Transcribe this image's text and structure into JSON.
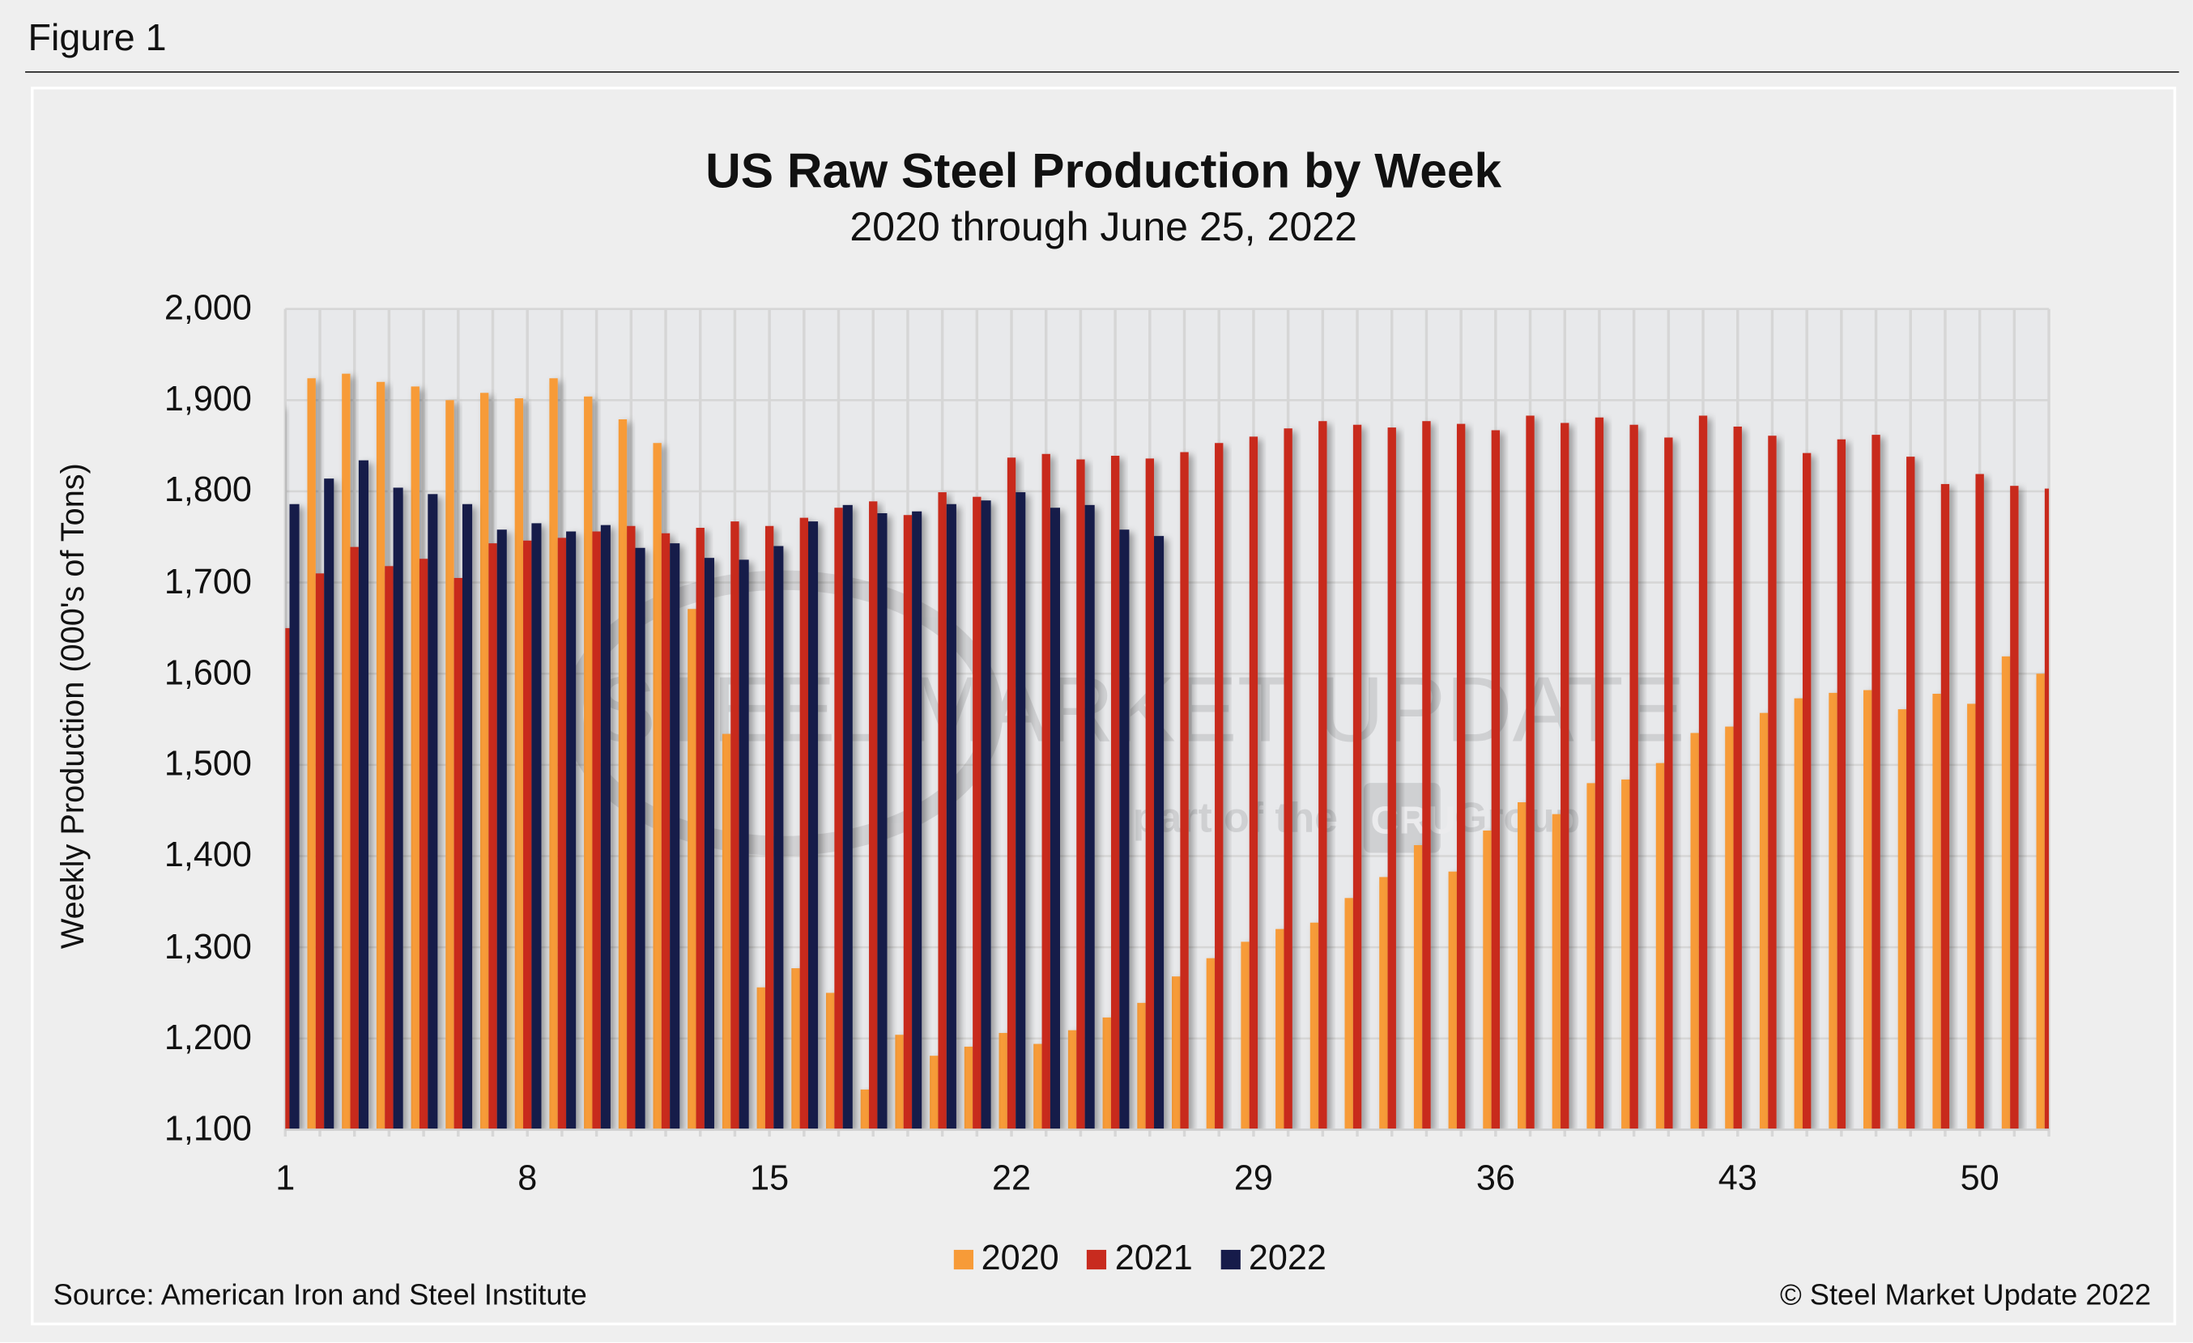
{
  "figure_label": "Figure 1",
  "source": "Source: American Iron and Steel Institute",
  "copyright": "© Steel Market Update 2022",
  "watermark": {
    "line1": "STEEL MARKET UPDATE",
    "line2": "part of the",
    "logo": "CRU",
    "line3": "Group"
  },
  "chart_data": {
    "type": "bar",
    "title": "US Raw Steel Production by Week",
    "subtitle": "2020 through June 25, 2022",
    "xlabel": "",
    "ylabel": "Weekly Production (000's of Tons)",
    "ylim": [
      1100,
      2000
    ],
    "y_ticks": [
      "1,100",
      "1,200",
      "1,300",
      "1,400",
      "1,500",
      "1,600",
      "1,700",
      "1,800",
      "1,900",
      "2,000"
    ],
    "x_ticks": [
      "1",
      "8",
      "15",
      "22",
      "29",
      "36",
      "43",
      "50"
    ],
    "grid": true,
    "legend": "bottom",
    "categories": [
      1,
      2,
      3,
      4,
      5,
      6,
      7,
      8,
      9,
      10,
      11,
      12,
      13,
      14,
      15,
      16,
      17,
      18,
      19,
      20,
      21,
      22,
      23,
      24,
      25,
      26,
      27,
      28,
      29,
      30,
      31,
      32,
      33,
      34,
      35,
      36,
      37,
      38,
      39,
      40,
      41,
      42,
      43,
      44,
      45,
      46,
      47,
      48,
      49,
      50,
      51,
      52
    ],
    "series": [
      {
        "name": "2020",
        "color": "#f79b38",
        "values": [
          1894,
          1924,
          1929,
          1920,
          1915,
          1900,
          1908,
          1902,
          1924,
          1904,
          1879,
          1853,
          1671,
          1534,
          1256,
          1277,
          1250,
          1144,
          1204,
          1181,
          1191,
          1206,
          1194,
          1209,
          1223,
          1239,
          1268,
          1288,
          1306,
          1320,
          1327,
          1354,
          1377,
          1412,
          1383,
          1428,
          1459,
          1446,
          1480,
          1484,
          1502,
          1535,
          1542,
          1557,
          1573,
          1579,
          1582,
          1561,
          1578,
          1567,
          1619,
          1600
        ]
      },
      {
        "name": "2021",
        "color": "#c82b1f",
        "values": [
          1650,
          1710,
          1739,
          1718,
          1726,
          1705,
          1743,
          1746,
          1749,
          1756,
          1762,
          1754,
          1760,
          1767,
          1762,
          1771,
          1782,
          1789,
          1774,
          1799,
          1794,
          1837,
          1841,
          1835,
          1839,
          1836,
          1843,
          1853,
          1860,
          1869,
          1877,
          1873,
          1870,
          1877,
          1874,
          1867,
          1883,
          1875,
          1881,
          1873,
          1859,
          1883,
          1871,
          1861,
          1842,
          1857,
          1862,
          1838,
          1808,
          1819,
          1806,
          1803
        ]
      },
      {
        "name": "2022",
        "color": "#161b4a",
        "values": [
          1786,
          1814,
          1834,
          1804,
          1797,
          1786,
          1758,
          1765,
          1756,
          1763,
          1738,
          1743,
          1727,
          1725,
          1740,
          1767,
          1785,
          1776,
          1778,
          1786,
          1790,
          1799,
          1782,
          1785,
          1758,
          1751,
          null,
          null,
          null,
          null,
          null,
          null,
          null,
          null,
          null,
          null,
          null,
          null,
          null,
          null,
          null,
          null,
          null,
          null,
          null,
          null,
          null,
          null,
          null,
          null,
          null,
          null
        ]
      }
    ]
  }
}
